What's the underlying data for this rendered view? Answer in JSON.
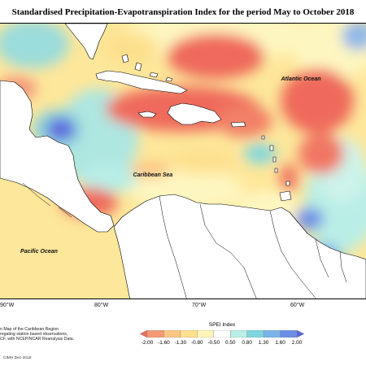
{
  "title": "Standardised Precipitation-Evapotranspiration Index for the period May to October 2018",
  "map_labels": {
    "atlantic": "Atlantic Ocean",
    "caribbean": "Caribbean Sea",
    "pacific": "Pacific Ocean"
  },
  "longitude_labels": [
    "90°W",
    "80°W",
    "70°W",
    "60°W"
  ],
  "footer_notes": [
    "n Map of the Caribbean Region",
    "regating station based observations,",
    "CF, with NCEP/NCAR Reanalysis Data."
  ],
  "credit": "CIMH Dec-2018",
  "legend": {
    "title": "SPEI Index",
    "ticks": [
      "-2.00",
      "-1.60",
      "-1.30",
      "-0.80",
      "-0.50",
      "0.50",
      "0.80",
      "1.30",
      "1.60",
      "2.00"
    ],
    "colors": [
      "#ef6a5c",
      "#f59a72",
      "#fbc583",
      "#fde08e",
      "#fef6b8",
      "#ffffff",
      "#b9eee6",
      "#7fd6df",
      "#79b2e8",
      "#6c8fe6",
      "#5d63df"
    ]
  }
}
